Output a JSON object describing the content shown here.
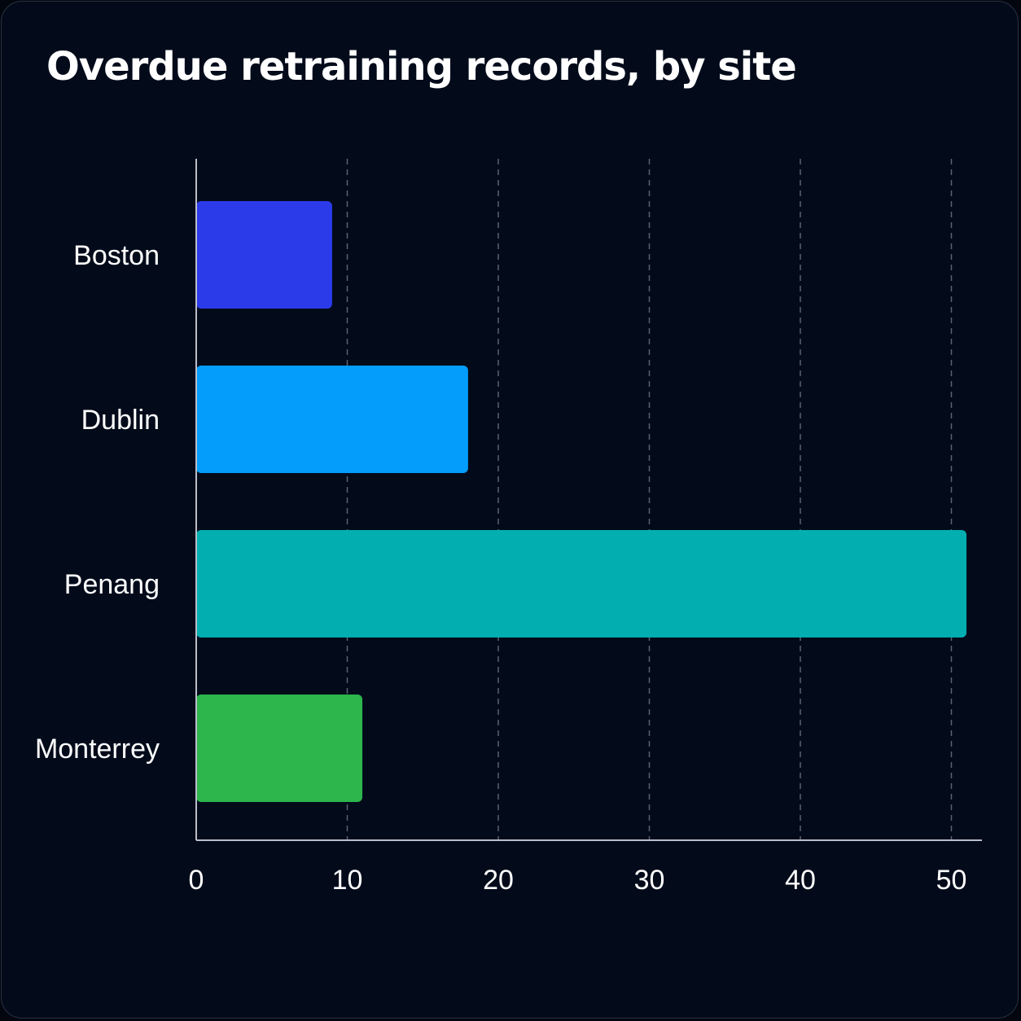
{
  "chart_data": {
    "type": "bar",
    "orientation": "horizontal",
    "title": "Overdue retraining records, by site",
    "xlabel": "",
    "ylabel": "",
    "categories": [
      "Boston",
      "Dublin",
      "Penang",
      "Monterrey"
    ],
    "values": [
      9,
      18,
      51,
      11
    ],
    "colors": [
      "#2b3bea",
      "#049dfb",
      "#02aeb0",
      "#2cb64c"
    ],
    "xlim": [
      0,
      52
    ],
    "ticks": [
      0,
      10,
      20,
      30,
      40,
      50
    ],
    "grid": true,
    "legend": "none"
  }
}
